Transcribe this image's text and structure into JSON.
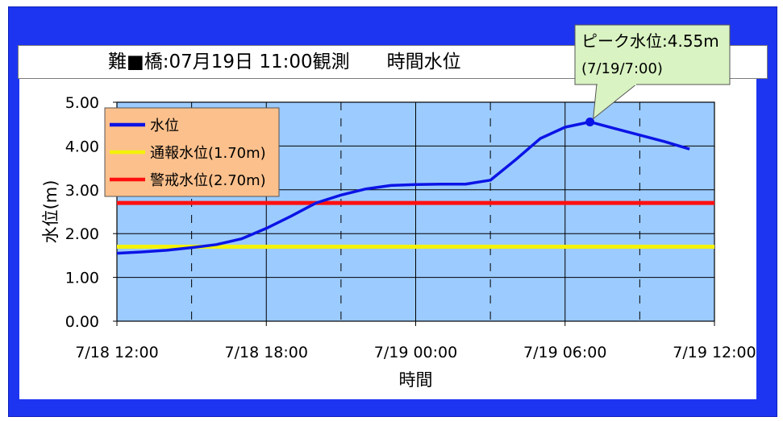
{
  "title": {
    "text": "難■橋:07月19日 11:00観測　　時間水位"
  },
  "colors": {
    "frame": "#1d35f0",
    "plot_bg": "#9ccbff",
    "level_line": "#0b14e6",
    "notify_line": "#f2f20a",
    "warning_line": "#ff1010",
    "legend_bg": "#fcc08c",
    "callout_bg": "#d9f3c2"
  },
  "chart_data": {
    "type": "line",
    "title": "",
    "xlabel": "時間",
    "ylabel": "水位(m)",
    "ylim": [
      0,
      5
    ],
    "y_ticks": [
      "0.00",
      "1.00",
      "2.00",
      "3.00",
      "4.00",
      "5.00"
    ],
    "x_tick_labels": [
      "7/18 12:00",
      "7/18 18:00",
      "7/19 00:00",
      "7/19 06:00",
      "7/19 12:00"
    ],
    "x_range_hours_from_7_18_12_00": [
      0,
      24
    ],
    "grid": true,
    "legend_position": "top-left",
    "series": [
      {
        "name": "水位",
        "color": "#0b14e6",
        "x": [
          "7/18 12:00",
          "7/18 13:00",
          "7/18 14:00",
          "7/18 15:00",
          "7/18 16:00",
          "7/18 17:00",
          "7/18 18:00",
          "7/18 19:00",
          "7/18 20:00",
          "7/18 21:00",
          "7/18 22:00",
          "7/18 23:00",
          "7/19 00:00",
          "7/19 01:00",
          "7/19 02:00",
          "7/19 03:00",
          "7/19 04:00",
          "7/19 05:00",
          "7/19 06:00",
          "7/19 07:00",
          "7/19 08:00",
          "7/19 09:00",
          "7/19 10:00",
          "7/19 11:00"
        ],
        "y": [
          1.55,
          1.58,
          1.62,
          1.68,
          1.75,
          1.88,
          2.12,
          2.4,
          2.7,
          2.88,
          3.02,
          3.1,
          3.12,
          3.13,
          3.13,
          3.22,
          3.68,
          4.17,
          4.43,
          4.55,
          4.4,
          4.25,
          4.1,
          3.93
        ]
      },
      {
        "name": "通報水位(1.70m)",
        "color": "#f2f20a",
        "constant": 1.7
      },
      {
        "name": "警戒水位(2.70m)",
        "color": "#ff1010",
        "constant": 2.7
      }
    ],
    "annotation": {
      "line1": "ピーク水位:4.55m",
      "line2": "(7/19/7:00)",
      "x": "7/19 07:00",
      "y": 4.55
    }
  }
}
